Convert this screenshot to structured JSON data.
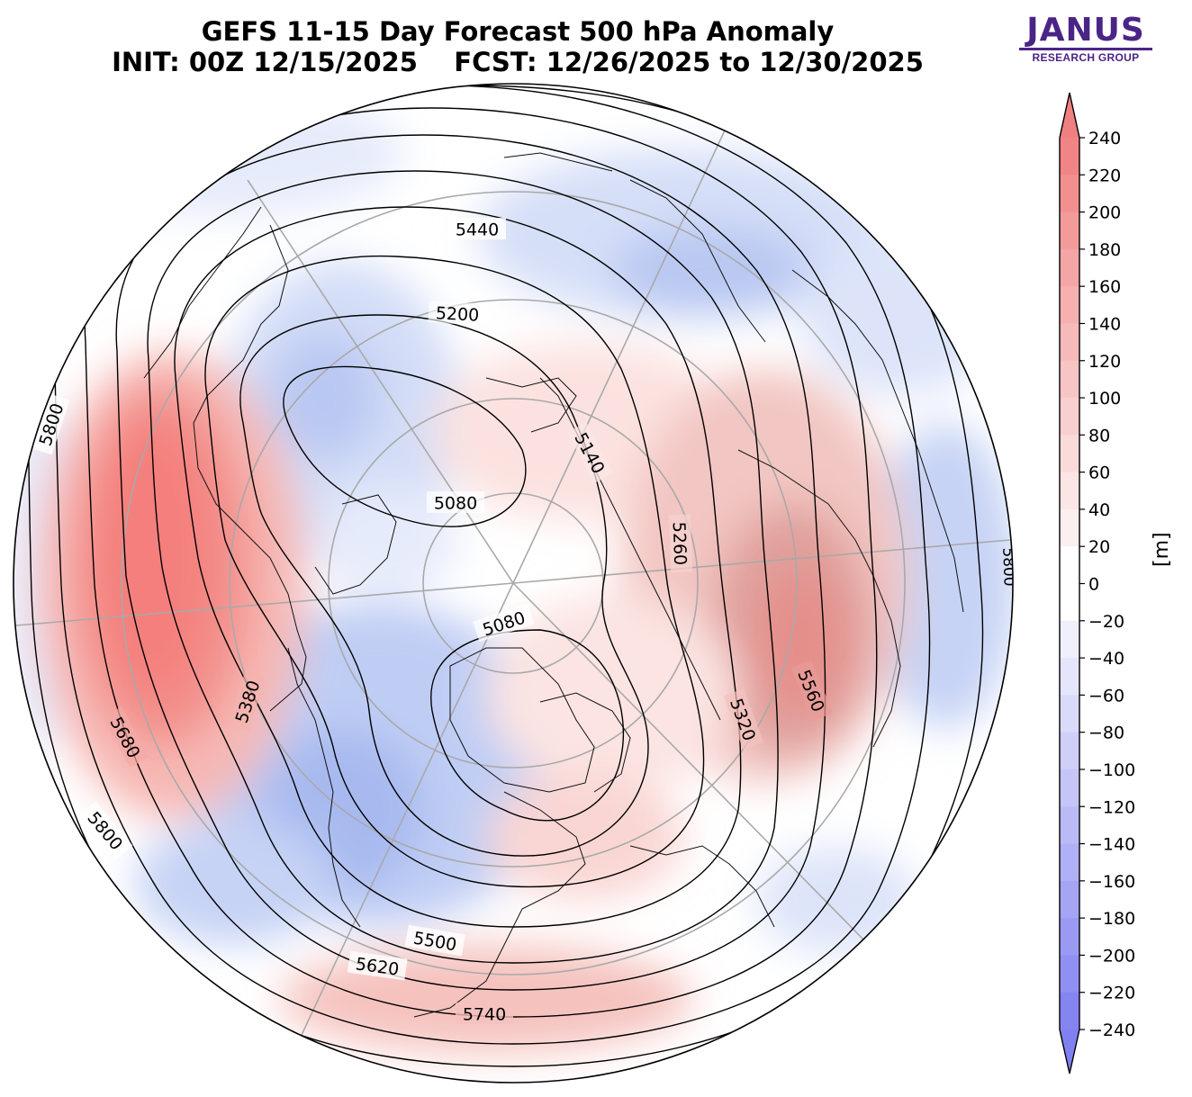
{
  "title": {
    "line1": "GEFS 11-15 Day Forecast 500 hPa Anomaly",
    "line2": "INIT: 00Z 12/15/2025    FCST: 12/26/2025 to 12/30/2025"
  },
  "logo": {
    "main": "JANUS",
    "sub": "RESEARCH GROUP",
    "color": "#4b2586"
  },
  "colorbar": {
    "unit": "[m]",
    "ticks": [
      240,
      220,
      200,
      180,
      160,
      140,
      120,
      100,
      80,
      60,
      40,
      20,
      0,
      -20,
      -40,
      -60,
      -80,
      -100,
      -120,
      -140,
      -160,
      -180,
      -200,
      -220,
      -240
    ],
    "tick_labels": [
      "240",
      "220",
      "200",
      "180",
      "160",
      "140",
      "120",
      "100",
      "80",
      "60",
      "40",
      "20",
      "0",
      "−20",
      "−40",
      "−60",
      "−80",
      "−100",
      "−120",
      "−140",
      "−160",
      "−180",
      "−200",
      "−220",
      "−240"
    ],
    "positive_color": "#f08080",
    "negative_color": "#8080f0"
  },
  "contour_labels": [
    {
      "text": "5440"
    },
    {
      "text": "5200"
    },
    {
      "text": "5140"
    },
    {
      "text": "5080"
    },
    {
      "text": "5080"
    },
    {
      "text": "5260"
    },
    {
      "text": "5320"
    },
    {
      "text": "5560"
    },
    {
      "text": "5380"
    },
    {
      "text": "5680"
    },
    {
      "text": "5800"
    },
    {
      "text": "5800"
    },
    {
      "text": "5500"
    },
    {
      "text": "5620"
    },
    {
      "text": "5740"
    },
    {
      "text": "5800"
    }
  ]
}
